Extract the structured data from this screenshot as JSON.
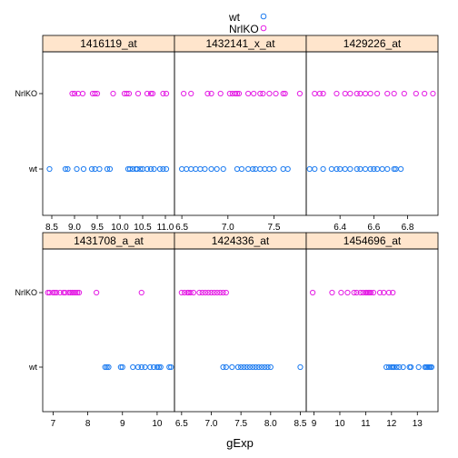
{
  "chart_data": {
    "type": "scatter",
    "title": "",
    "xlabel": "gExp",
    "ylabel": "",
    "groups": [
      "wt",
      "NrlKO"
    ],
    "legend": {
      "placement": "top",
      "entries": [
        {
          "label": "wt",
          "color": "#1e7cf0"
        },
        {
          "label": "NrlKO",
          "color": "#e41ee4"
        }
      ]
    },
    "strip_color": "#ffe5cc",
    "panels": [
      {
        "name": "1416119_at",
        "xlim": [
          8.3,
          11.2
        ],
        "ticks": [
          8.5,
          9.0,
          9.5,
          10.0,
          10.5,
          11.0
        ],
        "tick_labels": [
          "8.5",
          "9.0",
          "9.5",
          "10.0",
          "10.5",
          "11.0"
        ],
        "wt": [
          8.45,
          8.8,
          8.85,
          9.05,
          9.2,
          9.38,
          9.45,
          9.55,
          9.72,
          9.78,
          10.18,
          10.22,
          10.28,
          10.35,
          10.38,
          10.45,
          10.5,
          10.6,
          10.68,
          10.75,
          10.88,
          10.95,
          11.02
        ],
        "nrlko": [
          8.95,
          9.0,
          9.08,
          9.18,
          9.4,
          9.45,
          9.5,
          9.85,
          10.1,
          10.15,
          10.2,
          10.4,
          10.6,
          10.68,
          10.72,
          10.95,
          11.02
        ]
      },
      {
        "name": "1432141_x_at",
        "xlim": [
          6.42,
          7.85
        ],
        "ticks": [
          6.5,
          7.0,
          7.5
        ],
        "tick_labels": [
          "6.5",
          "7.0",
          "7.5"
        ],
        "wt": [
          6.5,
          6.55,
          6.6,
          6.65,
          6.7,
          6.75,
          6.82,
          6.88,
          6.95,
          7.1,
          7.15,
          7.22,
          7.27,
          7.3,
          7.35,
          7.4,
          7.45,
          7.5,
          7.6,
          7.65
        ],
        "nrlko": [
          6.52,
          6.6,
          6.78,
          6.82,
          6.92,
          7.02,
          7.05,
          7.08,
          7.1,
          7.12,
          7.22,
          7.28,
          7.35,
          7.38,
          7.45,
          7.52,
          7.6,
          7.62,
          7.78
        ]
      },
      {
        "name": "1429226_at",
        "xlim": [
          6.2,
          6.98
        ],
        "ticks": [
          6.4,
          6.6,
          6.8
        ],
        "tick_labels": [
          "6.4",
          "6.6",
          "6.8"
        ],
        "wt": [
          6.22,
          6.25,
          6.3,
          6.35,
          6.38,
          6.4,
          6.43,
          6.46,
          6.5,
          6.52,
          6.55,
          6.58,
          6.6,
          6.62,
          6.65,
          6.68,
          6.72,
          6.73,
          6.76
        ],
        "nrlko": [
          6.25,
          6.28,
          6.3,
          6.38,
          6.43,
          6.46,
          6.5,
          6.52,
          6.55,
          6.58,
          6.62,
          6.68,
          6.72,
          6.78,
          6.85,
          6.9,
          6.95
        ]
      },
      {
        "name": "1431708_a_at",
        "xlim": [
          6.7,
          10.5
        ],
        "ticks": [
          7,
          8,
          9,
          10
        ],
        "tick_labels": [
          "7",
          "8",
          "9",
          "10"
        ],
        "wt": [
          8.5,
          8.55,
          8.6,
          8.95,
          9.0,
          9.3,
          9.45,
          9.55,
          9.65,
          9.8,
          9.9,
          10.0,
          10.05,
          10.1,
          10.35,
          10.4
        ],
        "nrlko": [
          6.85,
          6.9,
          7.0,
          7.05,
          7.1,
          7.2,
          7.3,
          7.35,
          7.45,
          7.5,
          7.55,
          7.6,
          7.65,
          7.7,
          7.75,
          8.25,
          9.55
        ]
      },
      {
        "name": "1424336_at",
        "xlim": [
          6.38,
          8.6
        ],
        "ticks": [
          6.5,
          7.0,
          7.5,
          8.0,
          8.5
        ],
        "tick_labels": [
          "6.5",
          "7.0",
          "7.5",
          "8.0",
          "8.5"
        ],
        "wt": [
          7.2,
          7.25,
          7.35,
          7.45,
          7.5,
          7.55,
          7.6,
          7.65,
          7.7,
          7.75,
          7.8,
          7.85,
          7.9,
          7.95,
          8.0,
          8.5
        ],
        "nrlko": [
          6.5,
          6.55,
          6.6,
          6.62,
          6.65,
          6.7,
          6.8,
          6.85,
          6.9,
          6.95,
          7.0,
          7.05,
          7.1,
          7.15,
          7.2,
          7.25
        ]
      },
      {
        "name": "1454696_at",
        "xlim": [
          8.7,
          13.8
        ],
        "ticks": [
          9,
          10,
          11,
          12,
          13
        ],
        "tick_labels": [
          "9",
          "10",
          "11",
          "12",
          "13"
        ],
        "wt": [
          11.8,
          11.9,
          12.0,
          12.05,
          12.1,
          12.2,
          12.3,
          12.45,
          12.7,
          12.75,
          13.05,
          13.3,
          13.35,
          13.4,
          13.45,
          13.5,
          13.55
        ],
        "nrlko": [
          8.95,
          9.7,
          10.05,
          10.3,
          10.55,
          10.65,
          10.8,
          10.9,
          11.0,
          11.05,
          11.1,
          11.15,
          11.2,
          11.3,
          11.55,
          11.7,
          11.9,
          12.05
        ]
      }
    ]
  }
}
